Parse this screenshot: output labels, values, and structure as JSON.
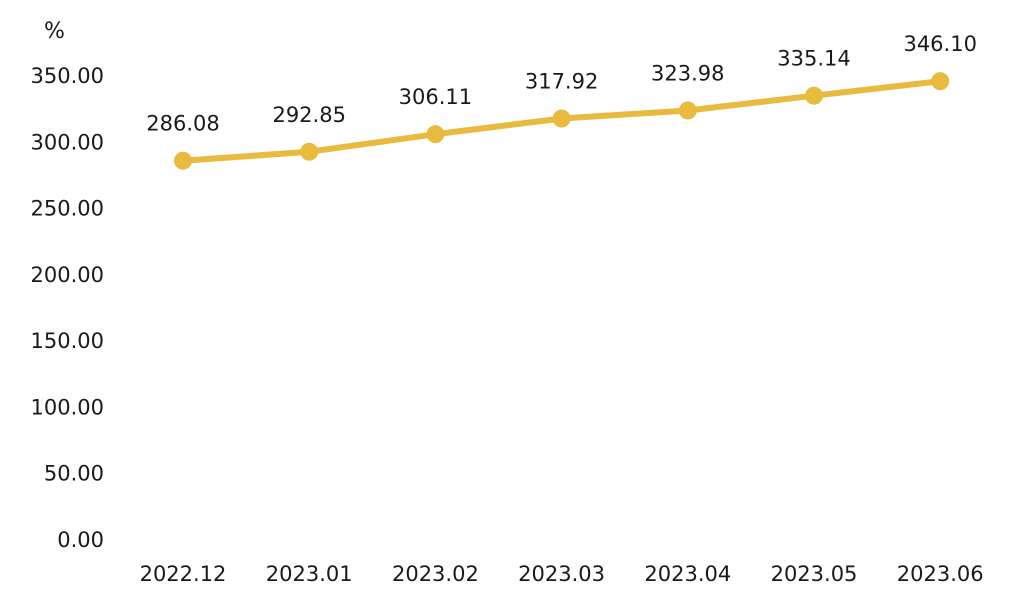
{
  "chart_data": {
    "type": "line",
    "title": "",
    "xlabel": "",
    "ylabel": "%",
    "categories": [
      "2022.12",
      "2023.01",
      "2023.02",
      "2023.03",
      "2023.04",
      "2023.05",
      "2023.06"
    ],
    "series": [
      {
        "values": [
          286.08,
          292.85,
          306.11,
          317.92,
          323.98,
          335.14,
          346.1
        ],
        "labels": [
          "286.08",
          "292.85",
          "306.11",
          "317.92",
          "323.98",
          "335.14",
          "346.10"
        ],
        "color": "#E8BA3E"
      }
    ],
    "ylim": [
      0,
      350
    ],
    "yticks": [
      "0.00",
      "50.00",
      "100.00",
      "150.00",
      "200.00",
      "250.00",
      "300.00",
      "350.00"
    ],
    "grid": false,
    "legend": "none"
  }
}
